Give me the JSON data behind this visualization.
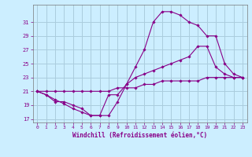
{
  "xlabel": "Windchill (Refroidissement éolien,°C)",
  "bg_color": "#cceeff",
  "grid_color": "#aaccdd",
  "line_color": "#880088",
  "xlim": [
    -0.5,
    23.5
  ],
  "ylim": [
    16.5,
    33.5
  ],
  "yticks": [
    17,
    19,
    21,
    23,
    25,
    27,
    29,
    31
  ],
  "xticks": [
    0,
    1,
    2,
    3,
    4,
    5,
    6,
    7,
    8,
    9,
    10,
    11,
    12,
    13,
    14,
    15,
    16,
    17,
    18,
    19,
    20,
    21,
    22,
    23
  ],
  "series": [
    [
      21.0,
      20.5,
      19.5,
      19.5,
      19.0,
      18.5,
      17.5,
      17.5,
      20.5,
      20.5,
      22.0,
      24.5,
      27.0,
      31.0,
      32.5,
      32.5,
      32.0,
      31.0,
      30.5,
      29.0,
      29.0,
      25.0,
      23.5,
      23.0
    ],
    [
      21.0,
      20.5,
      19.8,
      19.2,
      18.5,
      18.0,
      17.5,
      17.5,
      17.5,
      19.5,
      22.0,
      23.0,
      23.5,
      24.0,
      24.5,
      25.0,
      25.5,
      26.0,
      27.5,
      27.5,
      24.5,
      23.5,
      23.0,
      23.0
    ],
    [
      21.0,
      21.0,
      21.0,
      21.0,
      21.0,
      21.0,
      21.0,
      21.0,
      21.0,
      21.5,
      21.5,
      21.5,
      22.0,
      22.0,
      22.5,
      22.5,
      22.5,
      22.5,
      22.5,
      23.0,
      23.0,
      23.0,
      23.0,
      23.0
    ]
  ]
}
